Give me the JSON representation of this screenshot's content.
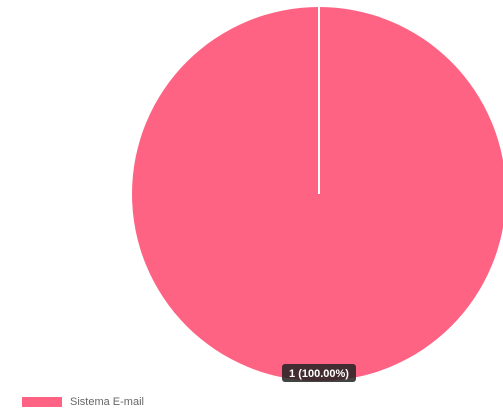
{
  "chart_data": {
    "type": "pie",
    "slices": [
      {
        "label": "Sistema E-mail",
        "value": 1,
        "data_label": "1 (100.00%)",
        "color": "#ff6384"
      }
    ],
    "legend_position": "bottom-left"
  },
  "style": {
    "slice_border_color": "#ffffff",
    "tooltip_bg": "#222222",
    "tooltip_text": "#ffffff"
  }
}
